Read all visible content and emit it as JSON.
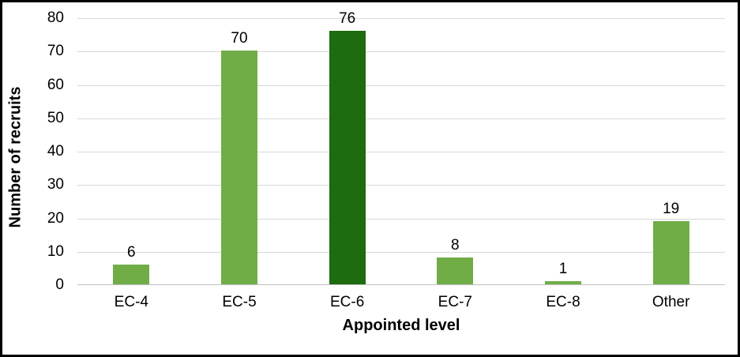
{
  "chart_data": {
    "type": "bar",
    "title": "",
    "categories": [
      "EC-4",
      "EC-5",
      "EC-6",
      "EC-7",
      "EC-8",
      "Other"
    ],
    "values": [
      6,
      70,
      76,
      8,
      1,
      19
    ],
    "data_labels": [
      "6",
      "70",
      "76",
      "8",
      "1",
      "19"
    ],
    "bar_colors": [
      "#70AD47",
      "#70AD47",
      "#1E6B10",
      "#70AD47",
      "#70AD47",
      "#70AD47"
    ],
    "xlabel": "Appointed level",
    "ylabel": "Number of recruits",
    "ylim": [
      0,
      80
    ],
    "ytick_step": 10,
    "ytick_labels": [
      "0",
      "10",
      "20",
      "30",
      "40",
      "50",
      "60",
      "70",
      "80"
    ],
    "grid": "horizontal",
    "legend_position": "none",
    "gridline_color": "#D9D9D9",
    "axis_line_color": "#BFBFBF",
    "frame_border_color": "#000000",
    "background_color": "#FFFFFF",
    "text_color": "#000000"
  }
}
